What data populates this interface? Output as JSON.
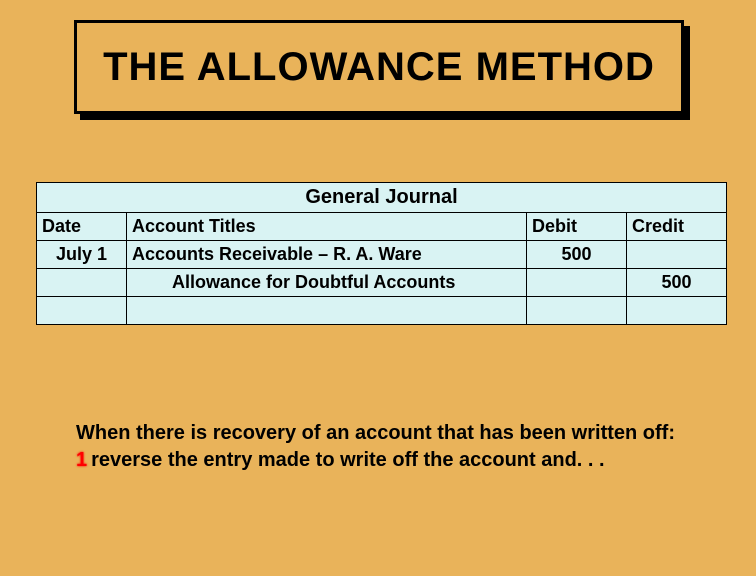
{
  "colors": {
    "background": "#e9b35a",
    "title_border": "#000000",
    "title_shadow": "#000000",
    "table_bg": "#d9f3f3",
    "table_border": "#000000",
    "text": "#000000",
    "step_num": "#ff0000"
  },
  "typography": {
    "title_fontsize": 40,
    "header_fontsize": 20,
    "cell_fontsize": 18,
    "explain_fontsize": 20,
    "font_family": "Arial"
  },
  "title": "THE ALLOWANCE METHOD",
  "journal": {
    "caption": "General Journal",
    "columns": {
      "date": "Date",
      "titles": "Account Titles",
      "debit": "Debit",
      "credit": "Credit"
    },
    "col_widths": {
      "date": 90,
      "titles": 400,
      "debit": 100,
      "credit": 100
    },
    "rows": [
      {
        "date": "July 1",
        "title": "Accounts Receivable – R. A. Ware",
        "debit": "500",
        "credit": "",
        "indent": false
      },
      {
        "date": "",
        "title": "Allowance for Doubtful Accounts",
        "debit": "",
        "credit": "500",
        "indent": true
      },
      {
        "date": "",
        "title": "",
        "debit": "",
        "credit": "",
        "indent": false
      }
    ]
  },
  "explain": {
    "line1": "When there is recovery of an account that has been written off:",
    "step_num": "1",
    "line2": "reverse the entry made to write off the account and. . ."
  }
}
